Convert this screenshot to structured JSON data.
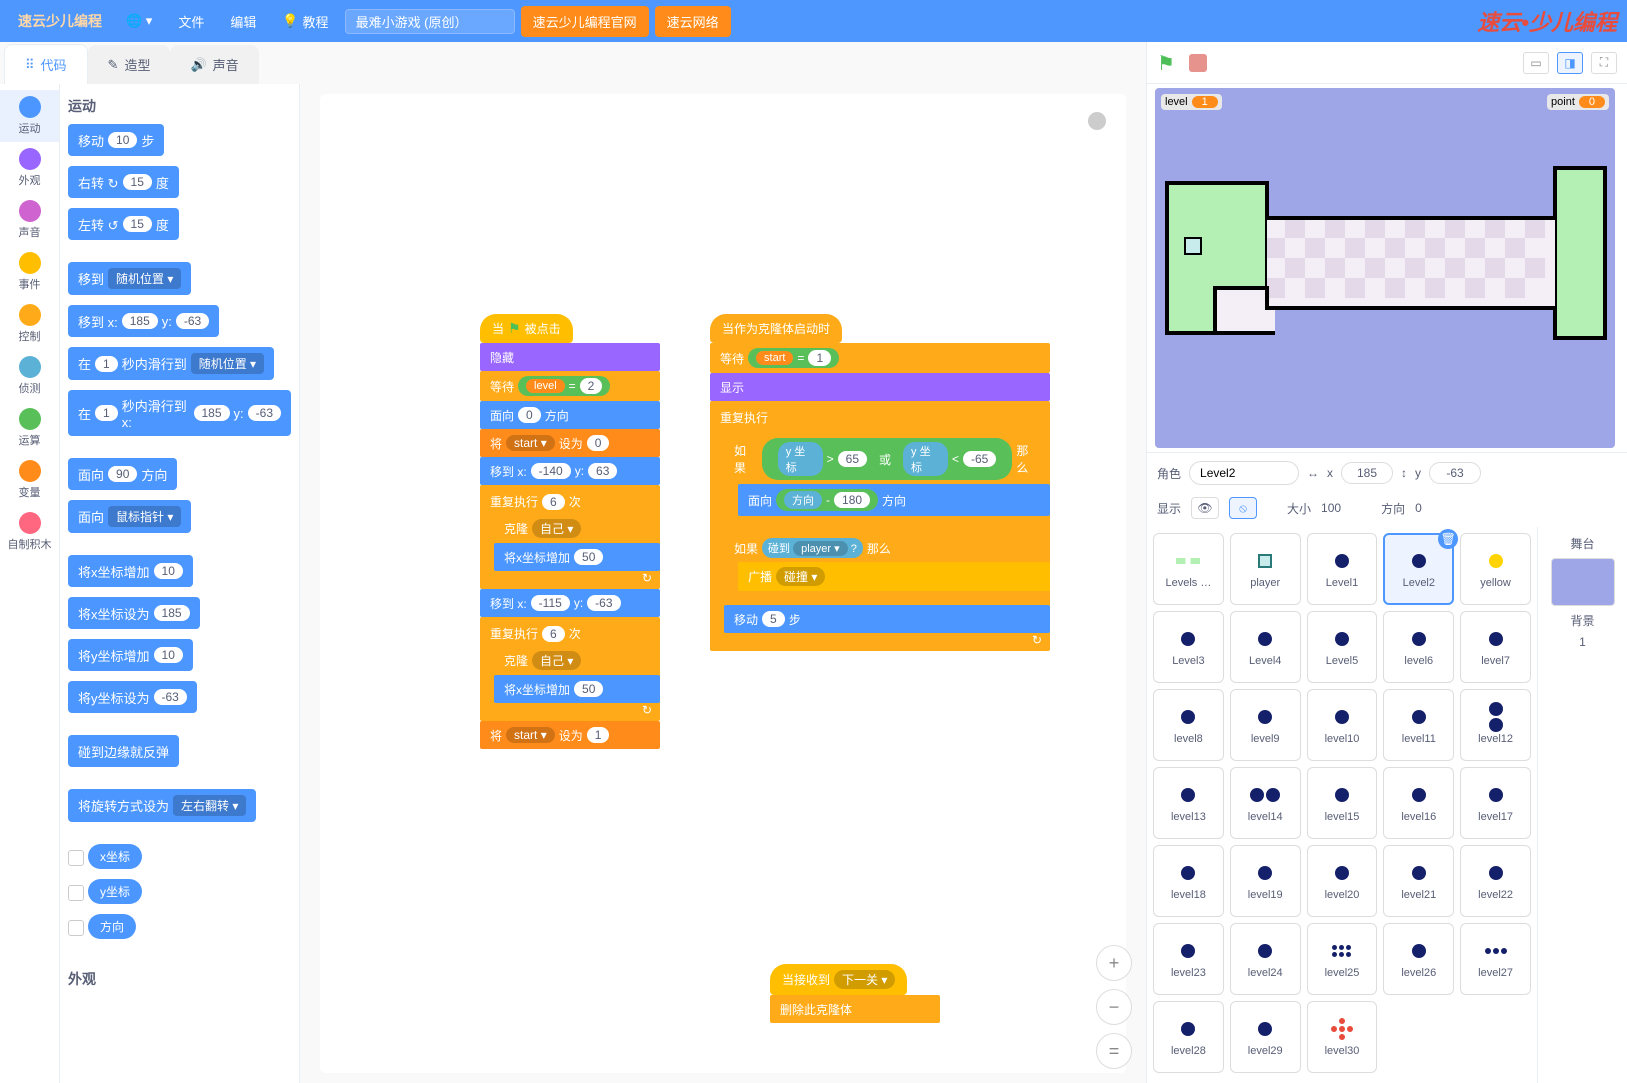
{
  "menubar": {
    "logo": "速云少儿编程",
    "globe": "🌐 ▾",
    "file": "文件",
    "edit": "编辑",
    "tutorials_icon": "💡",
    "tutorials": "教程",
    "project_name": "最难小游戏 (原创）",
    "btn1": "速云少儿编程官网",
    "btn2": "速云网络",
    "brand_right": "速云•少儿编程"
  },
  "tabs": {
    "code": "代码",
    "costumes": "造型",
    "sounds": "声音"
  },
  "categories": [
    {
      "name": "运动",
      "color": "#4c97ff",
      "active": true
    },
    {
      "name": "外观",
      "color": "#9966ff"
    },
    {
      "name": "声音",
      "color": "#cf63cf"
    },
    {
      "name": "事件",
      "color": "#ffbf00"
    },
    {
      "name": "控制",
      "color": "#ffab19"
    },
    {
      "name": "侦测",
      "color": "#5cb1d6"
    },
    {
      "name": "运算",
      "color": "#59c059"
    },
    {
      "name": "变量",
      "color": "#ff8c1a"
    },
    {
      "name": "自制积木",
      "color": "#ff6680"
    }
  ],
  "palette": {
    "title1": "运动",
    "move_a": "移动",
    "move_b": "步",
    "move_v": "10",
    "turn_r_a": "右转 ↻",
    "turn_r_b": "度",
    "turn_r_v": "15",
    "turn_l_a": "左转 ↺",
    "turn_l_b": "度",
    "turn_l_v": "15",
    "goto_rand": "移到",
    "goto_rand_v": "随机位置 ▾",
    "goto_xy_a": "移到 x:",
    "goto_xy_x": "185",
    "goto_xy_b": "y:",
    "goto_xy_y": "-63",
    "glide1_a": "在",
    "glide1_v": "1",
    "glide1_b": "秒内滑行到",
    "glide1_c": "随机位置 ▾",
    "glide2_a": "在",
    "glide2_v": "1",
    "glide2_b": "秒内滑行到 x:",
    "glide2_x": "185",
    "glide2_c": "y:",
    "glide2_y": "-63",
    "point_a": "面向",
    "point_v": "90",
    "point_b": "方向",
    "point2_a": "面向",
    "point2_v": "鼠标指针 ▾",
    "chgx_a": "将x坐标增加",
    "chgx_v": "10",
    "setx_a": "将x坐标设为",
    "setx_v": "185",
    "chgy_a": "将y坐标增加",
    "chgy_v": "10",
    "sety_a": "将y坐标设为",
    "sety_v": "-63",
    "bounce": "碰到边缘就反弹",
    "rot_a": "将旋转方式设为",
    "rot_v": "左右翻转 ▾",
    "rep_x": "x坐标",
    "rep_y": "y坐标",
    "rep_d": "方向",
    "title2": "外观"
  },
  "ws": {
    "s1": {
      "hat": "被点击",
      "flag": "⚑",
      "when": "当",
      "hide": "隐藏",
      "wait": "等待",
      "level": "level",
      "eq": "=",
      "two": "2",
      "face_a": "面向",
      "face_v": "0",
      "face_b": "方向",
      "set_a": "将",
      "start": "start ▾",
      "set_b": "设为",
      "zero": "0",
      "goto_a": "移到 x:",
      "gx1": "-140",
      "goto_b": "y:",
      "gy1": "63",
      "rep_a": "重复执行",
      "rep_v1": "6",
      "rep_b": "次",
      "clone_a": "克隆",
      "clone_v": "自己 ▾",
      "incx_a": "将x坐标增加",
      "incx_v": "50",
      "gx2": "-115",
      "gy2": "-63",
      "rep_v2": "6",
      "set2_v": "1"
    },
    "s2": {
      "hat": "当作为克隆体启动时",
      "wait": "等待",
      "start": "start",
      "eq": "=",
      "one": "1",
      "show": "显示",
      "forever": "重复执行",
      "if": "如果",
      "then": "那么",
      "ypos": "y 坐标",
      "gt": ">",
      "v65": "65",
      "or": "或",
      "lt": "<",
      "vn65": "-65",
      "face_a": "面向",
      "dir": "方向",
      "minus": "-",
      "v180": "180",
      "face_b": "方向",
      "if2": "如果",
      "touch": "碰到",
      "player": "player ▾",
      "q": "?",
      "then2": "那么",
      "bcast": "广播",
      "bcast_v": "碰撞 ▾",
      "move_a": "移动",
      "move_v": "5",
      "move_b": "步"
    },
    "s3": {
      "hat_a": "当接收到",
      "hat_v": "下一关 ▾",
      "del": "删除此克隆体"
    }
  },
  "stage_ctl": {
    "flag": "⚑"
  },
  "hud": {
    "level_k": "level",
    "level_v": "1",
    "point_k": "point",
    "point_v": "0"
  },
  "sprite_info": {
    "label": "角色",
    "name": "Level2",
    "x_icon": "↔",
    "x_lbl": "x",
    "x": "185",
    "y_icon": "↕",
    "y_lbl": "y",
    "y": "-63",
    "show": "显示",
    "size_lbl": "大小",
    "size": "100",
    "dir_lbl": "方向",
    "dir": "0"
  },
  "sprites": [
    {
      "name": "Levels …",
      "thumb": "bar"
    },
    {
      "name": "player",
      "thumb": "sq"
    },
    {
      "name": "Level1",
      "thumb": "dot"
    },
    {
      "name": "Level2",
      "thumb": "dot",
      "sel": true
    },
    {
      "name": "yellow",
      "thumb": "ydot"
    },
    {
      "name": "Level3",
      "thumb": "dot"
    },
    {
      "name": "Level4",
      "thumb": "dot"
    },
    {
      "name": "Level5",
      "thumb": "dot"
    },
    {
      "name": "level6",
      "thumb": "dot"
    },
    {
      "name": "level7",
      "thumb": "dot"
    },
    {
      "name": "level8",
      "thumb": "dot"
    },
    {
      "name": "level9",
      "thumb": "dot"
    },
    {
      "name": "level10",
      "thumb": "dot"
    },
    {
      "name": "level11",
      "thumb": "dot"
    },
    {
      "name": "level12",
      "thumb": "2dotv"
    },
    {
      "name": "level13",
      "thumb": "dot"
    },
    {
      "name": "level14",
      "thumb": "2doth"
    },
    {
      "name": "level15",
      "thumb": "dot"
    },
    {
      "name": "level16",
      "thumb": "dot"
    },
    {
      "name": "level17",
      "thumb": "dot"
    },
    {
      "name": "level18",
      "thumb": "dot"
    },
    {
      "name": "level19",
      "thumb": "dot"
    },
    {
      "name": "level20",
      "thumb": "dot"
    },
    {
      "name": "level21",
      "thumb": "dot"
    },
    {
      "name": "level22",
      "thumb": "dot"
    },
    {
      "name": "level23",
      "thumb": "dot"
    },
    {
      "name": "level24",
      "thumb": "dot"
    },
    {
      "name": "level25",
      "thumb": "dots"
    },
    {
      "name": "level26",
      "thumb": "dot"
    },
    {
      "name": "level27",
      "thumb": "3dot"
    },
    {
      "name": "level28",
      "thumb": "dot"
    },
    {
      "name": "level29",
      "thumb": "dot"
    },
    {
      "name": "level30",
      "thumb": "rdots"
    }
  ],
  "stage_sel": {
    "label": "舞台",
    "bg": "背景",
    "count": "1"
  },
  "colors": {
    "motion": "#4c97ff",
    "looks": "#9966ff",
    "control": "#ffab19",
    "events": "#ffbf00",
    "operators": "#59c059",
    "sensing": "#5cb1d6",
    "variables": "#ff8c1a",
    "stage_bg": "#9fa6e8",
    "green_zone": "#b4f0b4"
  }
}
